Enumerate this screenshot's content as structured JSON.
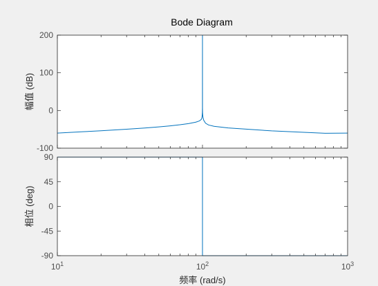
{
  "chart_data": [
    {
      "type": "line",
      "title": "Bode Diagram",
      "ylabel": "幅值 (dB)",
      "xscale": "log",
      "xlim": [
        10,
        1000
      ],
      "ylim": [
        -100,
        200
      ],
      "yticks": [
        -100,
        0,
        100,
        200
      ],
      "grid": false,
      "line_color": "#0072bd",
      "series": [
        {
          "x": [
            10,
            15,
            20,
            30,
            40,
            50,
            60,
            70,
            80,
            90,
            95,
            98,
            99,
            99.5,
            99.8,
            99.95,
            100,
            100.05,
            100.2,
            100.5,
            101,
            102,
            105,
            110,
            120,
            150,
            200,
            300,
            500,
            700,
            1000
          ],
          "y": [
            -59.9,
            -56.4,
            -53.8,
            -49.6,
            -46.4,
            -43.5,
            -40.7,
            -37.9,
            -34.9,
            -31.0,
            -27.9,
            -23.9,
            -20.0,
            -14.0,
            -6.0,
            6.0,
            200,
            6.0,
            -6.0,
            -14.0,
            -20.0,
            -26.0,
            -33.8,
            -38.4,
            -41.9,
            -46.2,
            -49.5,
            -54.1,
            -58.0,
            -60.4,
            -60.0
          ]
        }
      ]
    },
    {
      "type": "line",
      "xlabel": "频率 (rad/s)",
      "ylabel": "相位 (deg)",
      "xscale": "log",
      "xlim": [
        10,
        1000
      ],
      "ylim": [
        -90,
        90
      ],
      "yticks": [
        -90,
        -45,
        0,
        45,
        90
      ],
      "xticks": [
        {
          "base": "10",
          "exp": "1",
          "value": 10
        },
        {
          "base": "10",
          "exp": "2",
          "value": 100
        },
        {
          "base": "10",
          "exp": "3",
          "value": 1000
        }
      ],
      "grid": false,
      "line_color": "#0072bd",
      "series": [
        {
          "x": [
            10,
            99.9,
            100,
            100.01,
            1000
          ],
          "y": [
            90,
            90,
            90,
            -90,
            -90
          ]
        }
      ]
    }
  ]
}
